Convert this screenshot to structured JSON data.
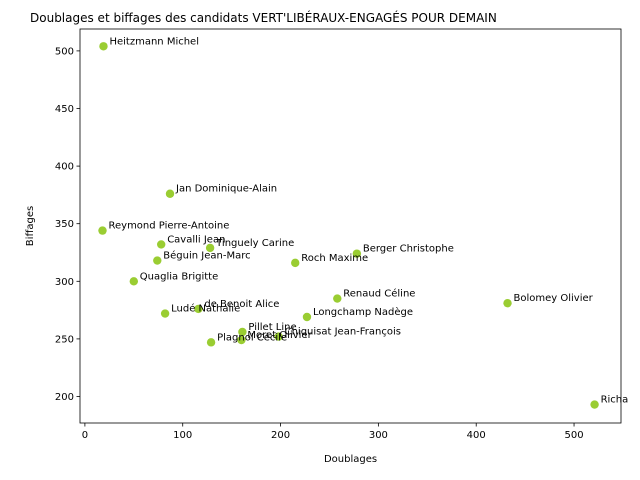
{
  "chart_data": {
    "type": "scatter",
    "title": "Doublages et biffages des candidats VERT'LIBÉRAUX-ENGAGÉS POUR DEMAIN",
    "xlabel": "Doublages",
    "ylabel": "Biffages",
    "xlim": [
      -5,
      548
    ],
    "ylim": [
      177,
      519
    ],
    "xticks": [
      0,
      100,
      200,
      300,
      400,
      500
    ],
    "yticks": [
      200,
      250,
      300,
      350,
      400,
      450,
      500
    ],
    "grid": false,
    "point_color": "#9acd32",
    "points": [
      {
        "label": "Heitzmann Michel",
        "x": 19,
        "y": 504
      },
      {
        "label": "Jan Dominique-Alain",
        "x": 87,
        "y": 376
      },
      {
        "label": "Reymond Pierre-Antoine",
        "x": 18,
        "y": 344
      },
      {
        "label": "Cavalli Jean",
        "x": 78,
        "y": 332
      },
      {
        "label": "Tinguely Carine",
        "x": 128,
        "y": 329
      },
      {
        "label": "Béguin Jean-Marc",
        "x": 74,
        "y": 318
      },
      {
        "label": "Berger Christophe",
        "x": 278,
        "y": 324
      },
      {
        "label": "Roch Maxime",
        "x": 215,
        "y": 316
      },
      {
        "label": "Quaglia Brigitte",
        "x": 50,
        "y": 300
      },
      {
        "label": "Renaud Céline",
        "x": 258,
        "y": 285
      },
      {
        "label": "Bolomey Olivier",
        "x": 432,
        "y": 281
      },
      {
        "label": "de Benoit Alice",
        "x": 116,
        "y": 276
      },
      {
        "label": "Ludé Nathalie",
        "x": 82,
        "y": 272
      },
      {
        "label": "Longchamp Nadège",
        "x": 227,
        "y": 269
      },
      {
        "label": "Pillet Line",
        "x": 161,
        "y": 256
      },
      {
        "label": "Chiquisat Jean-François",
        "x": 198,
        "y": 252
      },
      {
        "label": "Plagnol Cécile",
        "x": 129,
        "y": 247
      },
      {
        "label": "Moret Olivier",
        "x": 160,
        "y": 249
      },
      {
        "label": "Richa",
        "x": 521,
        "y": 193
      }
    ]
  }
}
